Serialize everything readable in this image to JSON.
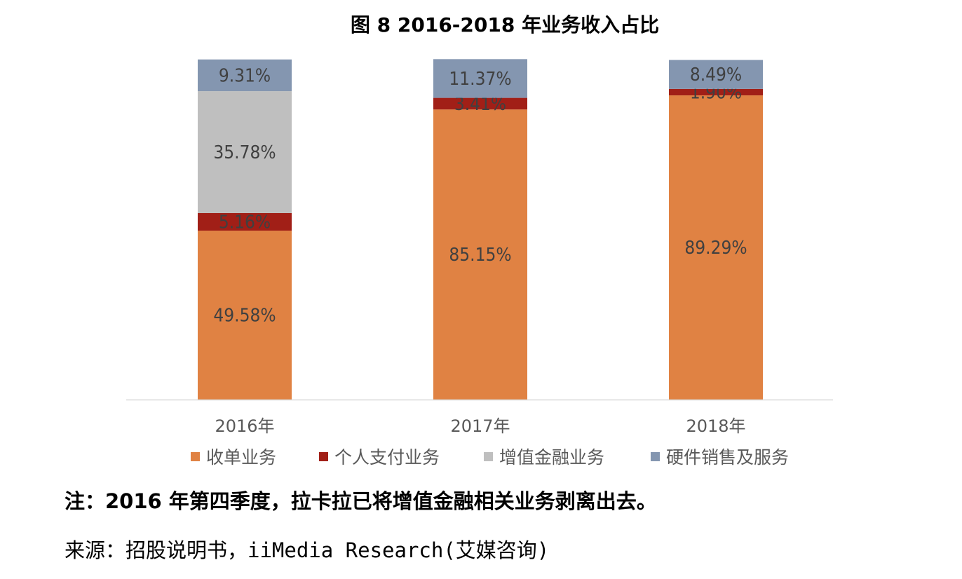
{
  "chart_data": {
    "type": "bar",
    "stacked": true,
    "title": "图 8   2016-2018 年业务收入占比",
    "categories": [
      "2016年",
      "2017年",
      "2018年"
    ],
    "series": [
      {
        "name": "收单业务",
        "color": "#E08243",
        "values": [
          49.58,
          85.15,
          89.29
        ]
      },
      {
        "name": "个人支付业务",
        "color": "#A11F17",
        "values": [
          5.16,
          3.41,
          1.9
        ]
      },
      {
        "name": "增值金融业务",
        "color": "#BFBFBF",
        "values": [
          35.78,
          0,
          0
        ]
      },
      {
        "name": "硬件销售及服务",
        "color": "#8496B0",
        "values": [
          9.31,
          11.37,
          8.49
        ]
      }
    ],
    "ylim": [
      0,
      100
    ],
    "grid": false,
    "legend": "bottom"
  },
  "note": "注：2016 年第四季度，拉卡拉已将增值金融相关业务剥离出去。",
  "source": "来源：招股说明书，iiMedia Research(艾媒咨询)"
}
